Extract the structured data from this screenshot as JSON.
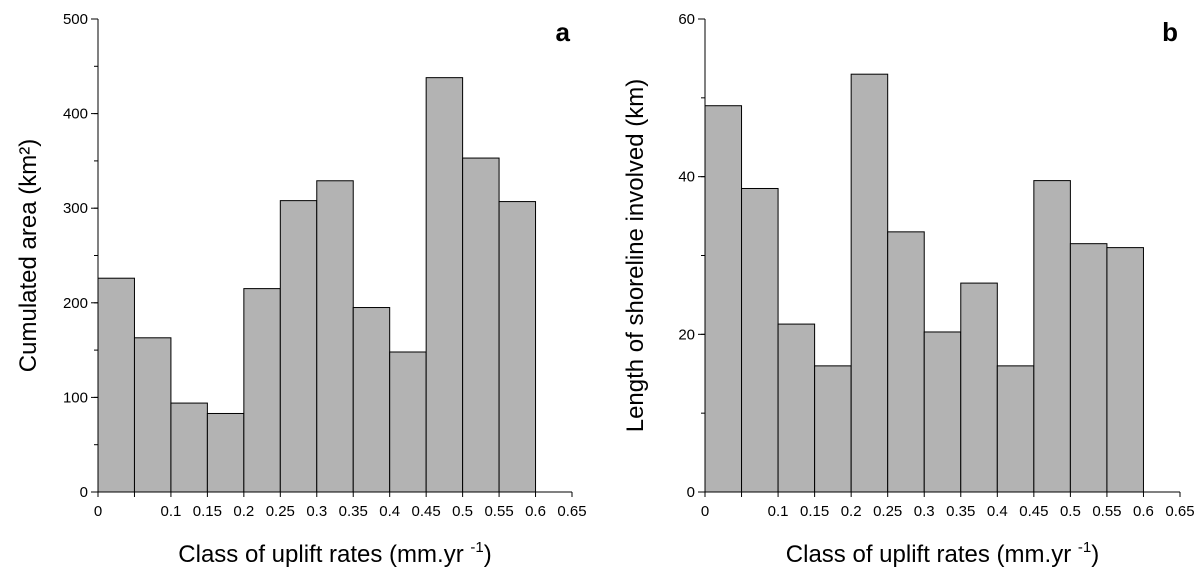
{
  "chart_data": [
    {
      "type": "bar",
      "panel_label": "a",
      "xlabel": "Class of uplift rates (mm.yr",
      "xlabel_sup": "-1",
      "xlabel_end": ")",
      "ylabel": "Cumulated area (km²)",
      "x_ticks": [
        "0",
        "0.1",
        "0.15",
        "0.2",
        "0.25",
        "0.3",
        "0.35",
        "0.4",
        "0.45",
        "0.5",
        "0.55",
        "0.6",
        "0.65"
      ],
      "xlim": [
        0,
        0.65
      ],
      "ylim": [
        0,
        500
      ],
      "y_ticks": [
        "0",
        "100",
        "200",
        "300",
        "400",
        "500"
      ],
      "y_minor_step": 50,
      "bins": [
        [
          0,
          0.05
        ],
        [
          0.05,
          0.1
        ],
        [
          0.1,
          0.15
        ],
        [
          0.15,
          0.2
        ],
        [
          0.2,
          0.25
        ],
        [
          0.25,
          0.3
        ],
        [
          0.3,
          0.35
        ],
        [
          0.35,
          0.4
        ],
        [
          0.4,
          0.45
        ],
        [
          0.45,
          0.5
        ],
        [
          0.5,
          0.55
        ],
        [
          0.55,
          0.6
        ],
        [
          0.6,
          0.65
        ]
      ],
      "values": [
        226,
        163,
        94,
        83,
        215,
        308,
        329,
        195,
        148,
        438,
        353,
        307,
        0
      ],
      "bar_color": "#b3b3b3"
    },
    {
      "type": "bar",
      "panel_label": "b",
      "xlabel": "Class of uplift rates (mm.yr",
      "xlabel_sup": "-1",
      "xlabel_end": ")",
      "ylabel": "Length of shoreline involved (km)",
      "x_ticks": [
        "0",
        "0.1",
        "0.15",
        "0.2",
        "0.25",
        "0.3",
        "0.35",
        "0.4",
        "0.45",
        "0.5",
        "0.55",
        "0.6",
        "0.65"
      ],
      "xlim": [
        0,
        0.65
      ],
      "ylim": [
        0,
        60
      ],
      "y_ticks": [
        "0",
        "20",
        "40",
        "60"
      ],
      "y_minor_step": 10,
      "bins": [
        [
          0,
          0.05
        ],
        [
          0.05,
          0.1
        ],
        [
          0.1,
          0.15
        ],
        [
          0.15,
          0.2
        ],
        [
          0.2,
          0.25
        ],
        [
          0.25,
          0.3
        ],
        [
          0.3,
          0.35
        ],
        [
          0.35,
          0.4
        ],
        [
          0.4,
          0.45
        ],
        [
          0.45,
          0.5
        ],
        [
          0.5,
          0.55
        ],
        [
          0.55,
          0.6
        ],
        [
          0.6,
          0.65
        ]
      ],
      "values": [
        49,
        38.5,
        21.3,
        16,
        53,
        33,
        20.3,
        26.5,
        16,
        39.5,
        31.5,
        31,
        0
      ],
      "bar_color": "#b3b3b3"
    }
  ]
}
